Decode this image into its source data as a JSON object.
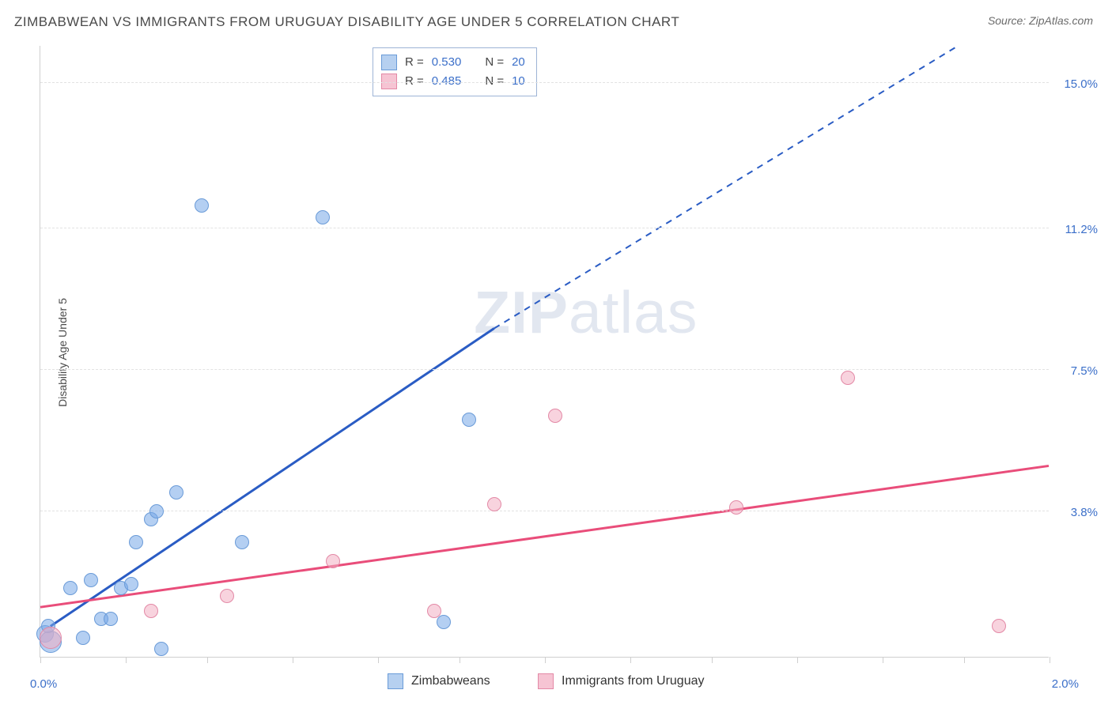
{
  "title": "ZIMBABWEAN VS IMMIGRANTS FROM URUGUAY DISABILITY AGE UNDER 5 CORRELATION CHART",
  "source": "Source: ZipAtlas.com",
  "y_axis_label": "Disability Age Under 5",
  "watermark_bold": "ZIP",
  "watermark_rest": "atlas",
  "chart": {
    "type": "scatter",
    "background_color": "#ffffff",
    "grid_color": "#e2e2e2",
    "axis_color": "#cfcfcf",
    "xlim": [
      0.0,
      2.0
    ],
    "ylim": [
      0.0,
      16.0
    ],
    "x_labels": [
      {
        "v": 0.0,
        "text": "0.0%"
      },
      {
        "v": 2.0,
        "text": "2.0%"
      }
    ],
    "y_labels": [
      {
        "v": 3.8,
        "text": "3.8%"
      },
      {
        "v": 7.5,
        "text": "7.5%"
      },
      {
        "v": 11.2,
        "text": "11.2%"
      },
      {
        "v": 15.0,
        "text": "15.0%"
      }
    ],
    "y_label_color": "#3b6fc9",
    "x_label_color": "#3b6fc9",
    "x_tick_positions": [
      0.0,
      0.17,
      0.33,
      0.5,
      0.67,
      0.83,
      1.0,
      1.17,
      1.33,
      1.5,
      1.67,
      1.83,
      2.0
    ],
    "series": [
      {
        "name": "Zimbabweans",
        "color_fill": "rgba(119,168,231,0.55)",
        "color_border": "#6a9bd8",
        "points": [
          {
            "x": 0.01,
            "y": 0.6,
            "r": 11
          },
          {
            "x": 0.02,
            "y": 0.4,
            "r": 14
          },
          {
            "x": 0.015,
            "y": 0.8,
            "r": 9
          },
          {
            "x": 0.06,
            "y": 1.8,
            "r": 9
          },
          {
            "x": 0.085,
            "y": 0.5,
            "r": 9
          },
          {
            "x": 0.1,
            "y": 2.0,
            "r": 9
          },
          {
            "x": 0.12,
            "y": 1.0,
            "r": 9
          },
          {
            "x": 0.14,
            "y": 1.0,
            "r": 9
          },
          {
            "x": 0.16,
            "y": 1.8,
            "r": 9
          },
          {
            "x": 0.18,
            "y": 1.9,
            "r": 9
          },
          {
            "x": 0.19,
            "y": 3.0,
            "r": 9
          },
          {
            "x": 0.22,
            "y": 3.6,
            "r": 9
          },
          {
            "x": 0.23,
            "y": 3.8,
            "r": 9
          },
          {
            "x": 0.27,
            "y": 4.3,
            "r": 9
          },
          {
            "x": 0.24,
            "y": 0.2,
            "r": 9
          },
          {
            "x": 0.32,
            "y": 11.8,
            "r": 9
          },
          {
            "x": 0.4,
            "y": 3.0,
            "r": 9
          },
          {
            "x": 0.56,
            "y": 11.5,
            "r": 9
          },
          {
            "x": 0.8,
            "y": 0.9,
            "r": 9
          },
          {
            "x": 0.85,
            "y": 6.2,
            "r": 9
          }
        ],
        "trend": {
          "color": "#2a5cc4",
          "width": 3,
          "p1": {
            "x": 0.02,
            "y": 0.8
          },
          "p2_solid": {
            "x": 0.9,
            "y": 8.6
          },
          "p2_dashed": {
            "x": 1.82,
            "y": 16.0
          }
        }
      },
      {
        "name": "Immigrants from Uruguay",
        "color_fill": "rgba(243,175,195,0.55)",
        "color_border": "#e389a6",
        "points": [
          {
            "x": 0.02,
            "y": 0.5,
            "r": 14
          },
          {
            "x": 0.22,
            "y": 1.2,
            "r": 9
          },
          {
            "x": 0.37,
            "y": 1.6,
            "r": 9
          },
          {
            "x": 0.58,
            "y": 2.5,
            "r": 9
          },
          {
            "x": 0.78,
            "y": 1.2,
            "r": 9
          },
          {
            "x": 0.9,
            "y": 4.0,
            "r": 9
          },
          {
            "x": 1.02,
            "y": 6.3,
            "r": 9
          },
          {
            "x": 1.38,
            "y": 3.9,
            "r": 9
          },
          {
            "x": 1.6,
            "y": 7.3,
            "r": 9
          },
          {
            "x": 1.9,
            "y": 0.8,
            "r": 9
          }
        ],
        "trend": {
          "color": "#e94d7a",
          "width": 3,
          "p1": {
            "x": 0.0,
            "y": 1.3
          },
          "p2_solid": {
            "x": 2.0,
            "y": 5.0
          }
        }
      }
    ],
    "stats_legend": {
      "border_color": "#9eb4d6",
      "rows": [
        {
          "swatch_fill": "#b6d0f0",
          "swatch_border": "#6a9bd8",
          "r_label": "R =",
          "r_val": "0.530",
          "n_label": "N =",
          "n_val": "20"
        },
        {
          "swatch_fill": "#f6c4d3",
          "swatch_border": "#e389a6",
          "r_label": "R =",
          "r_val": "0.485",
          "n_label": "N =",
          "n_val": "10"
        }
      ],
      "text_color_label": "#444444",
      "text_color_val": "#3b6fc9"
    },
    "bottom_legend": [
      {
        "swatch_fill": "#b6d0f0",
        "swatch_border": "#6a9bd8",
        "label": "Zimbabweans"
      },
      {
        "swatch_fill": "#f6c4d3",
        "swatch_border": "#e389a6",
        "label": "Immigrants from Uruguay"
      }
    ]
  }
}
